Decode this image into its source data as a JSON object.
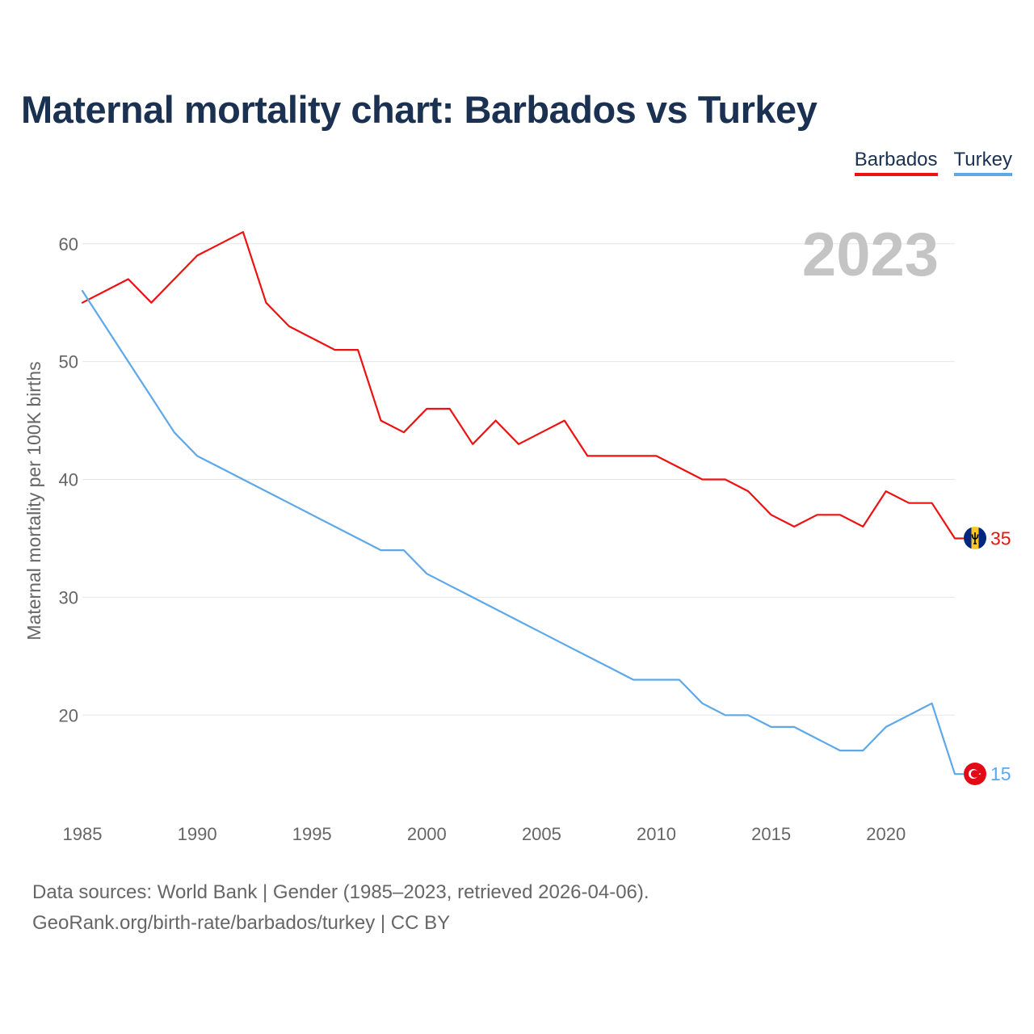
{
  "title": "Maternal mortality chart: Barbados vs Turkey",
  "year_label": "2023",
  "legend": [
    {
      "name": "Barbados",
      "color": "#ee1111"
    },
    {
      "name": "Turkey",
      "color": "#5da8e8"
    }
  ],
  "colors": {
    "title": "#1b3152",
    "grid": "#e6e6e6",
    "axis_text": "#666666",
    "barbados": "#ee1111",
    "turkey": "#5da8e8"
  },
  "footer": {
    "line1": "Data sources: World Bank | Gender (1985–2023, retrieved 2026-04-06).",
    "line2": "GeoRank.org/birth-rate/barbados/turkey | CC BY"
  },
  "chart_data": {
    "type": "line",
    "title": "Maternal mortality chart: Barbados vs Turkey",
    "xlabel": "",
    "ylabel": "Maternal mortality per 100K births",
    "xlim": [
      1985,
      2023
    ],
    "ylim": [
      12,
      63
    ],
    "yticks": [
      20,
      30,
      40,
      50,
      60
    ],
    "xticks": [
      1985,
      1990,
      1995,
      2000,
      2005,
      2010,
      2015,
      2020
    ],
    "grid": true,
    "legend_position": "top-right",
    "x": [
      1985,
      1986,
      1987,
      1988,
      1989,
      1990,
      1991,
      1992,
      1993,
      1994,
      1995,
      1996,
      1997,
      1998,
      1999,
      2000,
      2001,
      2002,
      2003,
      2004,
      2005,
      2006,
      2007,
      2008,
      2009,
      2010,
      2011,
      2012,
      2013,
      2014,
      2015,
      2016,
      2017,
      2018,
      2019,
      2020,
      2021,
      2022,
      2023
    ],
    "series": [
      {
        "name": "Barbados",
        "color": "#ee1111",
        "end_label": "35",
        "values": [
          55,
          56,
          57,
          55,
          57,
          59,
          60,
          61,
          55,
          53,
          52,
          51,
          51,
          45,
          44,
          46,
          46,
          43,
          45,
          43,
          44,
          45,
          42,
          42,
          42,
          42,
          41,
          40,
          40,
          39,
          37,
          36,
          37,
          37,
          36,
          39,
          38,
          38,
          35
        ]
      },
      {
        "name": "Turkey",
        "color": "#5da8e8",
        "end_label": "15",
        "values": [
          56,
          53,
          50,
          47,
          44,
          42,
          41,
          40,
          39,
          38,
          37,
          36,
          35,
          34,
          34,
          32,
          31,
          30,
          29,
          28,
          27,
          26,
          25,
          24,
          23,
          23,
          23,
          21,
          20,
          20,
          19,
          19,
          18,
          17,
          17,
          19,
          20,
          21,
          15
        ]
      }
    ]
  }
}
